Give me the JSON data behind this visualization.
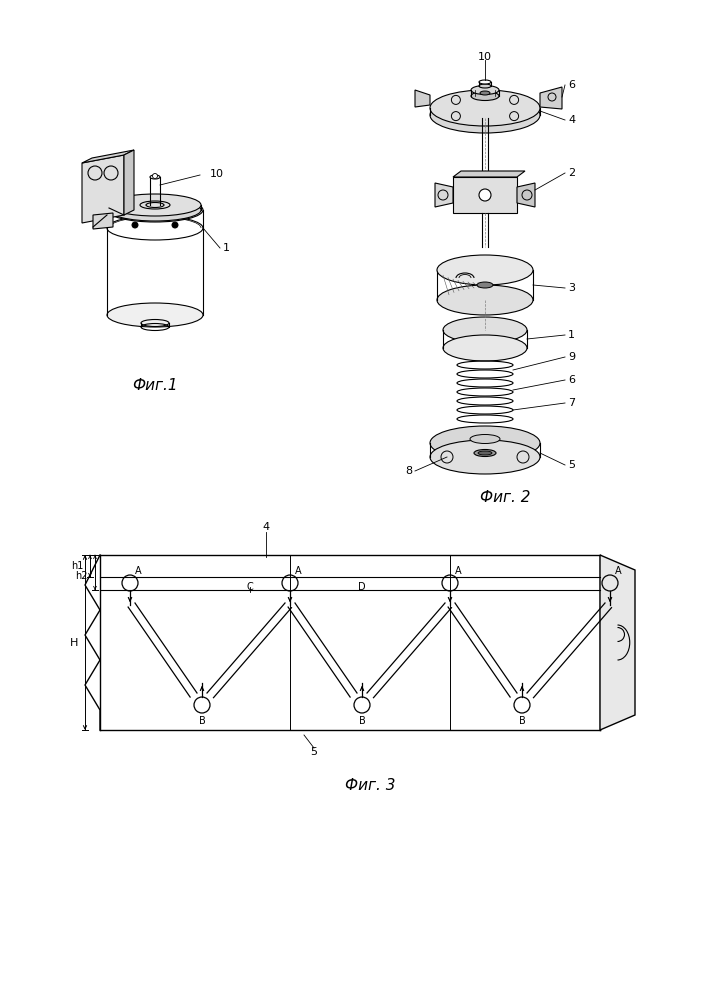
{
  "bg_color": "#ffffff",
  "line_color": "#000000",
  "fig1_label": "Фиг.1",
  "fig2_label": "Фиг. 2",
  "fig3_label": "Фиг. 3",
  "fig_label_size": 11
}
